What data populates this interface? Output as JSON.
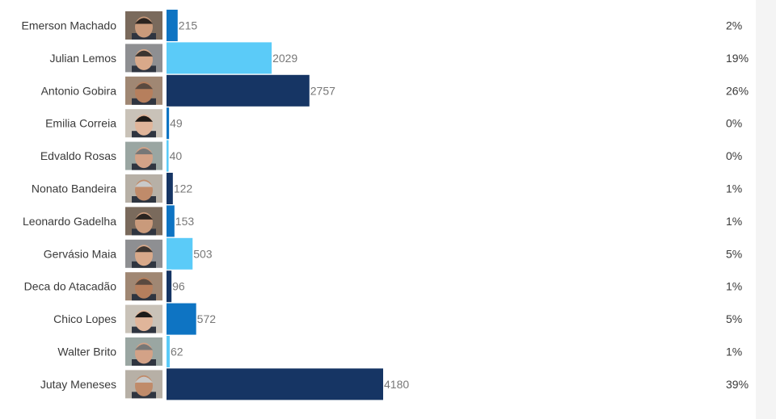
{
  "colors": {
    "dark_navy": "#163564",
    "medium_blue": "#0e74c3",
    "light_blue": "#5bcbf8"
  },
  "chart_data": {
    "type": "bar",
    "orientation": "horizontal",
    "grid": false,
    "legend": "none",
    "xlim": [
      0,
      4180
    ],
    "categories": [
      "Emerson Machado",
      "Julian Lemos",
      "Antonio Gobira",
      "Emilia Correia",
      "Edvaldo Rosas",
      "Nonato Bandeira",
      "Leonardo Gadelha",
      "Gervásio Maia",
      "Deca do Atacadão",
      "Chico Lopes",
      "Walter Brito",
      "Jutay Meneses"
    ],
    "values": [
      215,
      2029,
      2757,
      49,
      40,
      122,
      153,
      503,
      96,
      572,
      62,
      4180
    ],
    "value_labels": [
      "215",
      "2029",
      "2757",
      "49",
      "40",
      "122",
      "153",
      "503",
      "96",
      "572",
      "62",
      "4180"
    ],
    "percent_labels": [
      "2%",
      "19%",
      "26%",
      "0%",
      "0%",
      "1%",
      "1%",
      "5%",
      "1%",
      "5%",
      "1%",
      "39%"
    ],
    "bar_colors": [
      "#0e74c3",
      "#5bcbf8",
      "#163564",
      "#0e74c3",
      "#5bcbf8",
      "#163564",
      "#0e74c3",
      "#5bcbf8",
      "#163564",
      "#0e74c3",
      "#5bcbf8",
      "#163564"
    ],
    "avatar_icons": [
      "candidate-photo-icon",
      "candidate-photo-icon",
      "candidate-photo-icon",
      "candidate-photo-icon",
      "candidate-photo-icon",
      "candidate-photo-icon",
      "candidate-photo-icon",
      "candidate-photo-icon",
      "candidate-photo-icon",
      "candidate-photo-icon",
      "candidate-photo-icon",
      "candidate-photo-icon"
    ]
  }
}
